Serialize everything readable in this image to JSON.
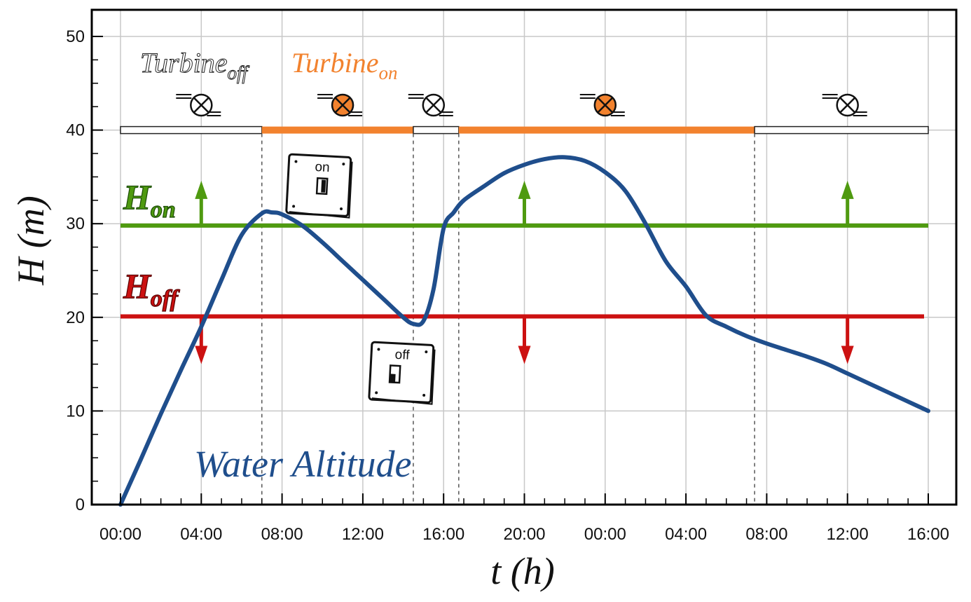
{
  "chart_data": {
    "type": "line",
    "xlabel": "t (h)",
    "ylabel": "H (m)",
    "xlim": [
      0,
      80
    ],
    "ylim": [
      0,
      50
    ],
    "x_ticks": [
      0,
      8,
      16,
      24,
      32,
      40,
      48,
      56,
      64,
      72,
      80
    ],
    "x_tick_labels": [
      "00:00",
      "04:00",
      "08:00",
      "12:00",
      "16:00",
      "20:00",
      "00:00",
      "04:00",
      "08:00",
      "12:00",
      "16:00"
    ],
    "y_ticks": [
      0,
      10,
      20,
      30,
      40,
      50
    ],
    "y_tick_labels": [
      "0",
      "10",
      "20",
      "30",
      "40",
      "50"
    ],
    "grid": true,
    "series": [
      {
        "name": "Water Altitude",
        "color": "#1f4e8c",
        "x": [
          0,
          2,
          4,
          6,
          8,
          10,
          12,
          14,
          15,
          16,
          18,
          20,
          22,
          24,
          26,
          28,
          29,
          30,
          31,
          32,
          33,
          34,
          36,
          38,
          40,
          42,
          44,
          46,
          48,
          50,
          52,
          54,
          56,
          58,
          60,
          62,
          64,
          66,
          68,
          70,
          72,
          74,
          76,
          78,
          80
        ],
        "y": [
          0,
          4.8,
          9.7,
          14.4,
          19,
          24,
          28.8,
          31.1,
          31.2,
          31,
          29.8,
          28,
          26,
          24,
          22,
          20,
          19.3,
          19.6,
          23,
          29.5,
          31.2,
          32.5,
          34,
          35.4,
          36.3,
          36.9,
          37.1,
          36.7,
          35.5,
          33.5,
          30,
          26,
          23.3,
          20.2,
          19,
          18,
          17.2,
          16.5,
          15.8,
          15,
          14,
          13,
          12,
          11,
          10
        ]
      },
      {
        "name": "H_on",
        "color": "#4f9a10",
        "x": [
          0,
          80
        ],
        "y": [
          29.8,
          29.8
        ]
      },
      {
        "name": "H_off",
        "color": "#cc1111",
        "x": [
          0,
          80
        ],
        "y": [
          20.1,
          20.1
        ]
      }
    ],
    "turbine_state": [
      {
        "from": 0,
        "to": 14,
        "state": "off"
      },
      {
        "from": 14,
        "to": 29,
        "state": "on"
      },
      {
        "from": 29,
        "to": 33.5,
        "state": "off"
      },
      {
        "from": 33.5,
        "to": 62.8,
        "state": "on"
      },
      {
        "from": 62.8,
        "to": 80,
        "state": "off"
      }
    ],
    "turbine_bar_y": 40,
    "switch_lines_x": [
      14,
      29,
      33.5,
      62.8
    ],
    "up_arrows_x": [
      8,
      40,
      72
    ],
    "down_arrows_x": [
      8,
      40,
      72
    ],
    "turbine_icons": [
      {
        "x": 8,
        "state": "off"
      },
      {
        "x": 22,
        "state": "on"
      },
      {
        "x": 31,
        "state": "off"
      },
      {
        "x": 48,
        "state": "on"
      },
      {
        "x": 72,
        "state": "off"
      }
    ],
    "colors": {
      "on": "#f2822e",
      "off": "#ffffff",
      "axis": "#000000",
      "grid": "#c8c8c8"
    }
  },
  "annotations": {
    "series_label": "Water Altitude",
    "h_on_main": "H",
    "h_on_sub": "on",
    "h_off_main": "H",
    "h_off_sub": "off",
    "turbine_off_main": "Turbine",
    "turbine_off_sub": "off",
    "turbine_on_main": "Turbine",
    "turbine_on_sub": "on",
    "switch_on_label": "on",
    "switch_off_label": "off"
  }
}
